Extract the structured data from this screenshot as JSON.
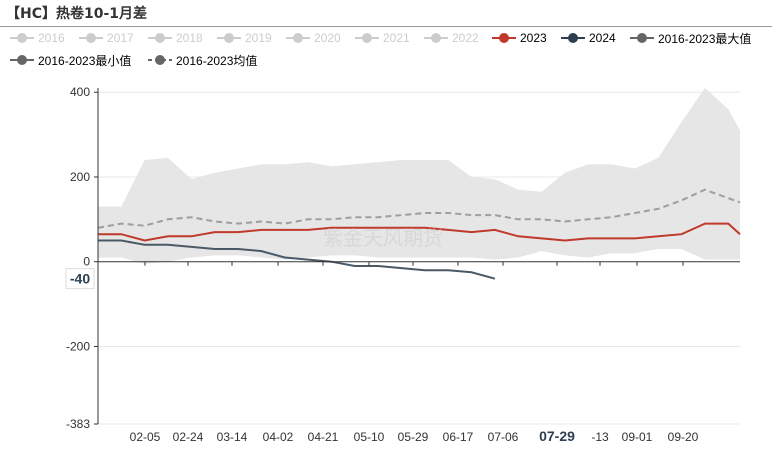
{
  "title": "【HC】热卷10-1月差",
  "legend": [
    {
      "label": "2016",
      "color": "#cccccc",
      "state": "off",
      "style": "solid"
    },
    {
      "label": "2017",
      "color": "#cccccc",
      "state": "off",
      "style": "solid"
    },
    {
      "label": "2018",
      "color": "#cccccc",
      "state": "off",
      "style": "solid"
    },
    {
      "label": "2019",
      "color": "#cccccc",
      "state": "off",
      "style": "solid"
    },
    {
      "label": "2020",
      "color": "#cccccc",
      "state": "off",
      "style": "solid"
    },
    {
      "label": "2021",
      "color": "#cccccc",
      "state": "off",
      "style": "solid"
    },
    {
      "label": "2022",
      "color": "#cccccc",
      "state": "off",
      "style": "solid"
    },
    {
      "label": "2023",
      "color": "#c0392b",
      "state": "on",
      "style": "solid"
    },
    {
      "label": "2024",
      "color": "#2c3e50",
      "state": "on",
      "style": "solid"
    },
    {
      "label": "2016-2023最大值",
      "color": "#666666",
      "state": "on",
      "style": "solid"
    },
    {
      "label": "2016-2023最小值",
      "color": "#666666",
      "state": "on",
      "style": "solid"
    },
    {
      "label": "2016-2023均值",
      "color": "#666666",
      "state": "on",
      "style": "dashed"
    }
  ],
  "watermark": "紫金天风期货",
  "pointer": {
    "y_label": "-40",
    "x_label": "07-29"
  },
  "colors": {
    "s2023": "#c0392b",
    "s2024": "#4a5966",
    "mean": "#9e9e9e",
    "band": "#e6e6e6",
    "axis": "#333333",
    "grid": "#e8e8e8"
  },
  "chart_data": {
    "type": "line",
    "title": "【HC】热卷10-1月差",
    "xlabel": "",
    "ylabel": "",
    "ylim": [
      -383,
      410
    ],
    "y_ticks": [
      400,
      200,
      0,
      -200,
      -383
    ],
    "x_ticks": [
      "02-05",
      "02-24",
      "03-14",
      "04-02",
      "04-21",
      "05-10",
      "05-29",
      "06-17",
      "07-06",
      "07-29",
      "-13",
      "09-01",
      "09-20"
    ],
    "grid": "horizontal",
    "legend_position": "top",
    "x_range_days": [
      20,
      295
    ],
    "x": [
      20,
      30,
      40,
      50,
      60,
      70,
      80,
      90,
      100,
      110,
      120,
      130,
      140,
      150,
      160,
      170,
      180,
      190,
      200,
      210,
      220,
      230,
      240,
      250,
      260,
      270,
      280,
      290,
      295
    ],
    "series": [
      {
        "name": "2016-2023最大值",
        "values": [
          130,
          130,
          240,
          245,
          195,
          210,
          220,
          230,
          230,
          235,
          225,
          230,
          235,
          240,
          240,
          240,
          200,
          195,
          170,
          165,
          210,
          230,
          230,
          220,
          245,
          330,
          410,
          360,
          310
        ]
      },
      {
        "name": "2016-2023最小值",
        "values": [
          10,
          10,
          -5,
          0,
          10,
          15,
          15,
          10,
          5,
          10,
          15,
          15,
          10,
          10,
          10,
          10,
          10,
          5,
          10,
          25,
          15,
          10,
          20,
          20,
          30,
          30,
          5,
          5,
          5
        ]
      },
      {
        "name": "2016-2023均值",
        "values": [
          80,
          90,
          85,
          100,
          105,
          95,
          90,
          95,
          90,
          100,
          100,
          105,
          105,
          110,
          115,
          115,
          110,
          110,
          100,
          100,
          95,
          100,
          105,
          115,
          125,
          145,
          170,
          150,
          140
        ]
      },
      {
        "name": "2023",
        "values": [
          65,
          65,
          50,
          60,
          60,
          70,
          70,
          75,
          75,
          75,
          80,
          80,
          80,
          80,
          80,
          75,
          70,
          75,
          60,
          55,
          50,
          55,
          55,
          55,
          60,
          65,
          90,
          90,
          65
        ]
      },
      {
        "name": "2024",
        "values": [
          50,
          50,
          40,
          40,
          35,
          30,
          30,
          25,
          10,
          5,
          0,
          -10,
          -10,
          -15,
          -20,
          -20,
          -25,
          -40,
          null,
          null,
          null,
          null,
          null,
          null,
          null,
          null,
          null,
          null,
          null
        ]
      }
    ]
  }
}
